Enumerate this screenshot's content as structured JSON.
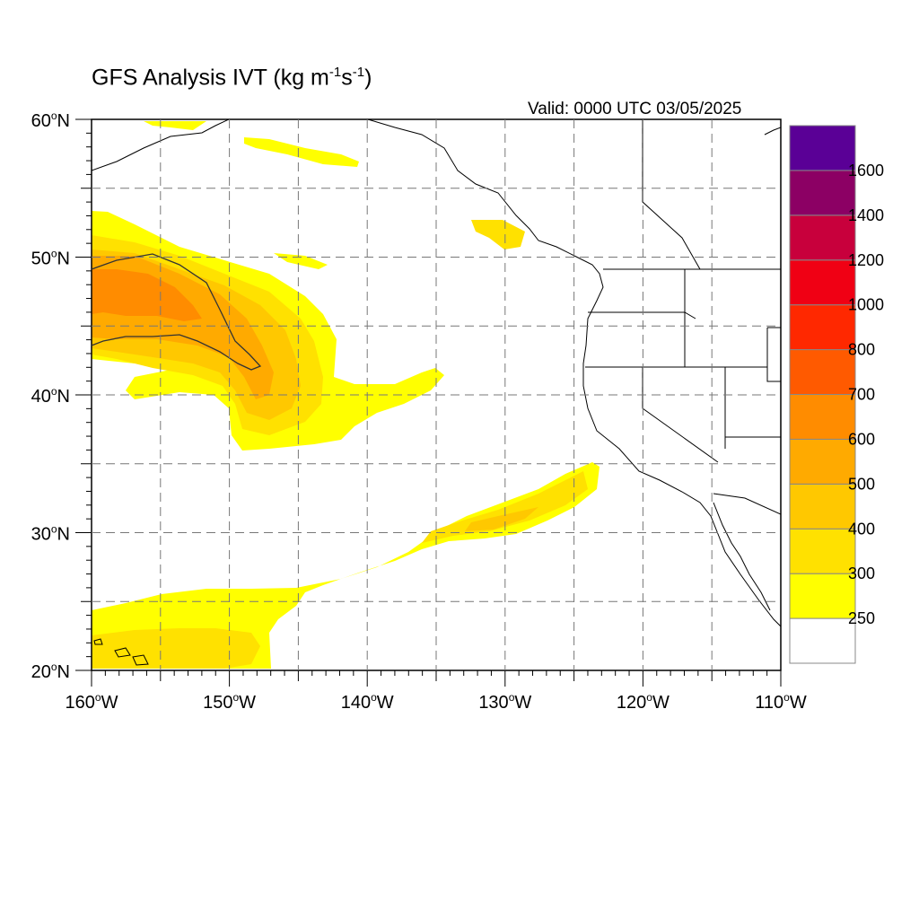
{
  "title": {
    "text": "GFS Analysis IVT (kg m",
    "exp1": "-1",
    "mid": "s",
    "exp2": "-1",
    "close": ")"
  },
  "valid": "Valid: 0000 UTC 03/05/2025",
  "map": {
    "lon_range": [
      -160,
      -110
    ],
    "lat_range": [
      20,
      60
    ],
    "grid": true,
    "lon_ticks": [
      {
        "value": -160,
        "num": "160",
        "suffix": "W"
      },
      {
        "value": -150,
        "num": "150",
        "suffix": "W"
      },
      {
        "value": -140,
        "num": "140",
        "suffix": "W"
      },
      {
        "value": -130,
        "num": "130",
        "suffix": "W"
      },
      {
        "value": -120,
        "num": "120",
        "suffix": "W"
      },
      {
        "value": -110,
        "num": "110",
        "suffix": "W"
      }
    ],
    "lat_ticks": [
      {
        "value": 60,
        "num": "60",
        "suffix": "N"
      },
      {
        "value": 50,
        "num": "50",
        "suffix": "N"
      },
      {
        "value": 40,
        "num": "40",
        "suffix": "N"
      },
      {
        "value": 30,
        "num": "30",
        "suffix": "N"
      },
      {
        "value": 20,
        "num": "20",
        "suffix": "N"
      }
    ],
    "degree_symbol": "o"
  },
  "colorbar": {
    "levels": [
      "250",
      "300",
      "400",
      "500",
      "600",
      "700",
      "800",
      "1000",
      "1200",
      "1400",
      "1600"
    ],
    "colors": [
      "#ffffff",
      "#ffff00",
      "#ffe100",
      "#ffc800",
      "#ffaa00",
      "#ff8c00",
      "#ff5a00",
      "#ff2800",
      "#f00014",
      "#c8003c",
      "#8c0064",
      "#5a0096"
    ]
  },
  "fields": {
    "color_300": "#ffff00",
    "color_400": "#ffe100",
    "color_500": "#ffc800",
    "color_600": "#ffaa00",
    "color_700": "#ff8c00"
  }
}
